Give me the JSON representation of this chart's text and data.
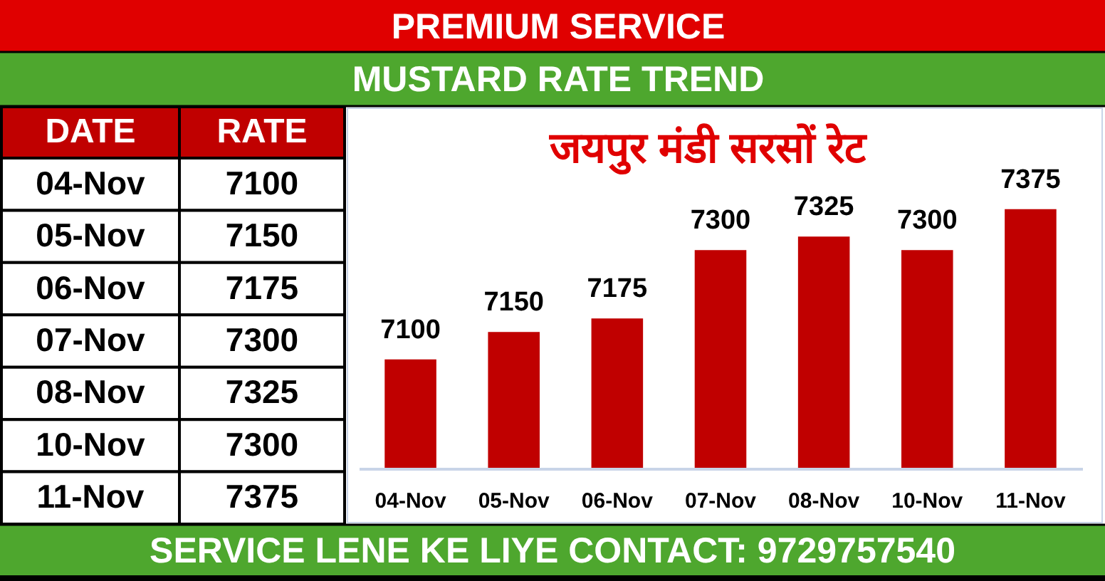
{
  "chart_data": [
    {
      "type": "other",
      "annotations": [
        "DATE",
        "RATE"
      ],
      "categories": [
        "04-Nov",
        "05-Nov",
        "06-Nov",
        "07-Nov",
        "08-Nov",
        "10-Nov",
        "11-Nov"
      ],
      "values": [
        7100,
        7150,
        7175,
        7300,
        7325,
        7300,
        7375
      ],
      "data_labels": true
    },
    {
      "type": "bar",
      "title": "MUSTARD RATE TREND",
      "subtitle": "जयपुर मंडी सरसों रेट",
      "annotations": [
        "PREMIUM SERVICE",
        "SERVICE LENE KE LIYE CONTACT: 9729757540"
      ],
      "categories": [
        "04-Nov",
        "05-Nov",
        "06-Nov",
        "07-Nov",
        "08-Nov",
        "10-Nov",
        "11-Nov"
      ],
      "values": [
        7100,
        7150,
        7175,
        7300,
        7325,
        7300,
        7375
      ],
      "color": "#c00000",
      "ylim": [
        6900,
        7560
      ],
      "data_labels": true
    }
  ]
}
